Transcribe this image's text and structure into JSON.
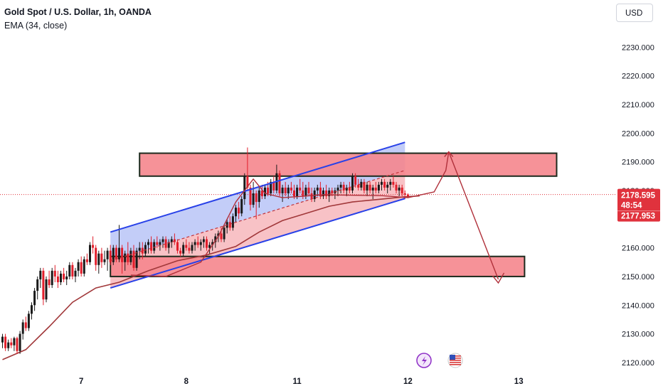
{
  "header": {
    "title": "Gold Spot / U.S. Dollar, 1h, OANDA",
    "indicator": "EMA (34, close)",
    "currency": "USD"
  },
  "colors": {
    "up": "#1a1a1a",
    "down": "#e11d2a",
    "ema": "#a1383a",
    "zone_fill": "#f5868d",
    "channel_blue": "#2841e8",
    "price_tag": "#e0323d"
  },
  "chart_data": {
    "type": "candlestick",
    "title": "Gold Spot / U.S. Dollar, 1h, OANDA",
    "ylim": [
      2117.5,
      2239
    ],
    "y_ticks": [
      2120,
      2130,
      2140,
      2150,
      2160,
      2170,
      2180,
      2190,
      2200,
      2210,
      2220,
      2230
    ],
    "y_tick_labels": [
      "2120.000",
      "2130.000",
      "2140.000",
      "2150.000",
      "2160.000",
      "",
      "2180.000",
      "2190.000",
      "2200.000",
      "2210.000",
      "2220.000",
      "2230.000"
    ],
    "x_day_labels": [
      {
        "label": "7",
        "bar": 27
      },
      {
        "label": "8",
        "bar": 63
      },
      {
        "label": "11",
        "bar": 101
      },
      {
        "label": "12",
        "bar": 139
      },
      {
        "label": "13",
        "bar": 177
      }
    ],
    "price_tag": {
      "price": 2178.595,
      "countdown": "48:54",
      "low_value": 2177.953
    },
    "indicator_ema": {
      "name": "EMA (34, close)",
      "points": [
        [
          0,
          2121.0
        ],
        [
          8,
          2124.5
        ],
        [
          16,
          2132.5
        ],
        [
          24,
          2141.0
        ],
        [
          32,
          2146.0
        ],
        [
          40,
          2148.0
        ],
        [
          50,
          2152.0
        ],
        [
          60,
          2155.5
        ],
        [
          70,
          2157.5
        ],
        [
          80,
          2160.5
        ],
        [
          88,
          2165.5
        ],
        [
          96,
          2169.5
        ],
        [
          104,
          2172.0
        ],
        [
          112,
          2174.5
        ],
        [
          120,
          2176.0
        ],
        [
          130,
          2177.0
        ],
        [
          138,
          2177.8
        ],
        [
          143,
          2178.1
        ]
      ]
    },
    "candles": [
      [
        2127.0,
        2130.0,
        2125.0,
        2129.0
      ],
      [
        2129.0,
        2130.0,
        2124.0,
        2125.0
      ],
      [
        2125.0,
        2128.0,
        2124.0,
        2127.0
      ],
      [
        2127.0,
        2128.5,
        2125.0,
        2126.0
      ],
      [
        2126.0,
        2129.0,
        2124.0,
        2128.5
      ],
      [
        2128.5,
        2129.0,
        2123.0,
        2124.0
      ],
      [
        2124.0,
        2131.0,
        2123.0,
        2130.0
      ],
      [
        2130.0,
        2135.0,
        2128.0,
        2134.0
      ],
      [
        2134.0,
        2136.0,
        2131.0,
        2132.0
      ],
      [
        2132.0,
        2138.0,
        2131.0,
        2137.0
      ],
      [
        2137.0,
        2141.0,
        2135.0,
        2140.0
      ],
      [
        2140.0,
        2146.0,
        2138.0,
        2145.0
      ],
      [
        2145.0,
        2150.0,
        2142.0,
        2149.0
      ],
      [
        2149.0,
        2153.0,
        2146.0,
        2152.0
      ],
      [
        2152.0,
        2153.0,
        2140.0,
        2142.0
      ],
      [
        2142.0,
        2150.0,
        2141.0,
        2149.0
      ],
      [
        2149.0,
        2152.0,
        2146.0,
        2147.0
      ],
      [
        2147.0,
        2153.0,
        2146.0,
        2152.0
      ],
      [
        2152.0,
        2154.0,
        2148.0,
        2150.0
      ],
      [
        2150.0,
        2152.0,
        2146.0,
        2148.0
      ],
      [
        2148.0,
        2152.0,
        2147.0,
        2151.0
      ],
      [
        2151.0,
        2153.0,
        2148.0,
        2149.0
      ],
      [
        2149.0,
        2152.0,
        2147.0,
        2150.0
      ],
      [
        2150.0,
        2155.0,
        2149.0,
        2154.0
      ],
      [
        2154.0,
        2155.0,
        2149.0,
        2150.0
      ],
      [
        2150.0,
        2153.0,
        2148.0,
        2152.0
      ],
      [
        2152.0,
        2156.0,
        2150.0,
        2155.0
      ],
      [
        2155.0,
        2157.0,
        2150.0,
        2151.0
      ],
      [
        2151.0,
        2157.0,
        2150.0,
        2156.0
      ],
      [
        2156.0,
        2158.0,
        2154.0,
        2155.0
      ],
      [
        2155.0,
        2162.0,
        2154.0,
        2161.0
      ],
      [
        2161.0,
        2164.0,
        2158.0,
        2160.0
      ],
      [
        2160.0,
        2161.0,
        2152.0,
        2154.0
      ],
      [
        2154.0,
        2159.0,
        2151.0,
        2158.0
      ],
      [
        2158.0,
        2160.0,
        2153.0,
        2155.0
      ],
      [
        2155.0,
        2159.0,
        2154.0,
        2156.0
      ],
      [
        2156.0,
        2160.0,
        2152.0,
        2159.0
      ],
      [
        2159.0,
        2161.0,
        2154.0,
        2155.0
      ],
      [
        2155.0,
        2161.0,
        2154.0,
        2160.0
      ],
      [
        2160.0,
        2161.0,
        2155.0,
        2156.0
      ],
      [
        2156.0,
        2168.0,
        2155.0,
        2160.0
      ],
      [
        2160.0,
        2161.0,
        2151.0,
        2155.0
      ],
      [
        2155.0,
        2159.0,
        2152.0,
        2158.0
      ],
      [
        2158.0,
        2162.0,
        2154.0,
        2155.0
      ],
      [
        2155.0,
        2160.0,
        2154.0,
        2159.0
      ],
      [
        2159.0,
        2161.0,
        2152.0,
        2153.0
      ],
      [
        2153.0,
        2160.0,
        2152.0,
        2159.0
      ],
      [
        2159.0,
        2162.0,
        2156.0,
        2160.0
      ],
      [
        2160.0,
        2162.0,
        2156.0,
        2158.0
      ],
      [
        2158.0,
        2162.0,
        2157.0,
        2161.0
      ],
      [
        2161.0,
        2163.0,
        2158.0,
        2162.0
      ],
      [
        2162.0,
        2164.0,
        2158.0,
        2159.0
      ],
      [
        2159.0,
        2163.0,
        2158.0,
        2162.0
      ],
      [
        2162.0,
        2164.0,
        2160.0,
        2161.0
      ],
      [
        2161.0,
        2163.0,
        2159.0,
        2162.0
      ],
      [
        2162.0,
        2164.0,
        2160.0,
        2163.0
      ],
      [
        2163.0,
        2164.0,
        2159.0,
        2160.0
      ],
      [
        2160.0,
        2163.0,
        2158.0,
        2162.0
      ],
      [
        2162.0,
        2164.0,
        2160.0,
        2163.0
      ],
      [
        2163.0,
        2165.0,
        2161.0,
        2162.0
      ],
      [
        2162.0,
        2163.0,
        2158.0,
        2159.0
      ],
      [
        2159.0,
        2160.0,
        2157.0,
        2158.0
      ],
      [
        2158.0,
        2162.0,
        2157.0,
        2161.0
      ],
      [
        2161.0,
        2163.0,
        2159.0,
        2160.0
      ],
      [
        2160.0,
        2162.0,
        2158.0,
        2159.0
      ],
      [
        2159.0,
        2162.0,
        2158.0,
        2161.0
      ],
      [
        2161.0,
        2163.0,
        2159.0,
        2162.0
      ],
      [
        2162.0,
        2164.0,
        2160.0,
        2161.0
      ],
      [
        2161.0,
        2163.0,
        2159.0,
        2162.0
      ],
      [
        2162.0,
        2164.0,
        2160.0,
        2163.0
      ],
      [
        2163.0,
        2164.0,
        2159.0,
        2160.0
      ],
      [
        2160.0,
        2162.0,
        2158.0,
        2161.0
      ],
      [
        2161.0,
        2163.0,
        2159.0,
        2162.0
      ],
      [
        2162.0,
        2165.0,
        2160.0,
        2164.0
      ],
      [
        2164.0,
        2166.0,
        2162.0,
        2165.0
      ],
      [
        2165.0,
        2167.0,
        2162.0,
        2163.0
      ],
      [
        2163.0,
        2168.0,
        2162.0,
        2167.0
      ],
      [
        2167.0,
        2170.0,
        2165.0,
        2169.0
      ],
      [
        2169.0,
        2171.0,
        2166.0,
        2167.0
      ],
      [
        2167.0,
        2172.0,
        2166.0,
        2171.0
      ],
      [
        2171.0,
        2175.0,
        2169.0,
        2174.0
      ],
      [
        2174.0,
        2176.0,
        2170.0,
        2172.0
      ],
      [
        2172.0,
        2178.0,
        2171.0,
        2177.0
      ],
      [
        2177.0,
        2186.0,
        2175.0,
        2185.0
      ],
      [
        2185.0,
        2195.0,
        2180.0,
        2181.0
      ],
      [
        2181.0,
        2182.0,
        2173.0,
        2175.0
      ],
      [
        2175.0,
        2183.0,
        2174.0,
        2179.0
      ],
      [
        2179.0,
        2180.0,
        2170.0,
        2176.0
      ],
      [
        2176.0,
        2181.0,
        2174.0,
        2180.0
      ],
      [
        2180.0,
        2182.0,
        2177.0,
        2178.0
      ],
      [
        2178.0,
        2182.0,
        2177.0,
        2181.0
      ],
      [
        2181.0,
        2183.0,
        2178.0,
        2179.0
      ],
      [
        2179.0,
        2184.0,
        2178.0,
        2183.0
      ],
      [
        2183.0,
        2185.0,
        2179.0,
        2180.0
      ],
      [
        2180.0,
        2189.0,
        2179.0,
        2186.0
      ],
      [
        2186.0,
        2187.0,
        2178.0,
        2179.0
      ],
      [
        2179.0,
        2182.0,
        2176.0,
        2181.0
      ],
      [
        2181.0,
        2183.0,
        2178.0,
        2179.0
      ],
      [
        2179.0,
        2182.0,
        2177.0,
        2181.0
      ],
      [
        2181.0,
        2183.0,
        2179.0,
        2180.0
      ],
      [
        2180.0,
        2182.0,
        2177.0,
        2178.0
      ],
      [
        2178.0,
        2182.0,
        2177.0,
        2181.0
      ],
      [
        2181.0,
        2184.0,
        2179.0,
        2180.0
      ],
      [
        2180.0,
        2183.0,
        2177.0,
        2178.0
      ],
      [
        2178.0,
        2182.0,
        2177.0,
        2181.0
      ],
      [
        2181.0,
        2183.0,
        2178.0,
        2179.0
      ],
      [
        2179.0,
        2181.0,
        2176.0,
        2177.0
      ],
      [
        2177.0,
        2181.0,
        2176.0,
        2180.0
      ],
      [
        2180.0,
        2182.0,
        2178.0,
        2181.0
      ],
      [
        2181.0,
        2183.0,
        2177.0,
        2178.0
      ],
      [
        2178.0,
        2181.0,
        2177.0,
        2180.0
      ],
      [
        2180.0,
        2182.0,
        2177.0,
        2178.0
      ],
      [
        2178.0,
        2181.0,
        2176.0,
        2180.0
      ],
      [
        2180.0,
        2181.0,
        2178.0,
        2179.0
      ],
      [
        2179.0,
        2181.0,
        2177.0,
        2180.0
      ],
      [
        2180.0,
        2182.0,
        2178.0,
        2181.0
      ],
      [
        2181.0,
        2183.0,
        2179.0,
        2182.0
      ],
      [
        2182.0,
        2183.0,
        2179.0,
        2180.0
      ],
      [
        2180.0,
        2182.0,
        2178.0,
        2181.0
      ],
      [
        2181.0,
        2183.0,
        2179.0,
        2180.0
      ],
      [
        2180.0,
        2186.0,
        2179.0,
        2185.0
      ],
      [
        2185.0,
        2186.0,
        2181.0,
        2182.0
      ],
      [
        2182.0,
        2184.0,
        2180.0,
        2181.0
      ],
      [
        2181.0,
        2184.0,
        2180.0,
        2183.0
      ],
      [
        2183.0,
        2184.0,
        2179.0,
        2180.0
      ],
      [
        2180.0,
        2183.0,
        2178.0,
        2182.0
      ],
      [
        2182.0,
        2183.0,
        2179.0,
        2180.0
      ],
      [
        2180.0,
        2182.0,
        2177.0,
        2181.0
      ],
      [
        2181.0,
        2183.0,
        2179.0,
        2180.0
      ],
      [
        2180.0,
        2183.0,
        2179.0,
        2182.0
      ],
      [
        2182.0,
        2184.0,
        2180.0,
        2183.0
      ],
      [
        2183.0,
        2184.0,
        2180.0,
        2181.0
      ],
      [
        2181.0,
        2183.0,
        2179.0,
        2182.0
      ],
      [
        2182.0,
        2184.0,
        2180.0,
        2183.0
      ],
      [
        2183.0,
        2185.0,
        2181.0,
        2182.0
      ],
      [
        2182.0,
        2183.0,
        2179.0,
        2180.0
      ],
      [
        2180.0,
        2182.0,
        2178.0,
        2181.0
      ],
      [
        2181.0,
        2182.0,
        2178.0,
        2179.0
      ],
      [
        2179.0,
        2180.0,
        2177.0,
        2178.6
      ],
      [
        2178.6,
        2179.0,
        2177.5,
        2178.0
      ]
    ],
    "drawings": {
      "zones": [
        {
          "name": "resistance-zone",
          "bar_from": 47,
          "bar_to": 190,
          "price_top": 2193.0,
          "price_bottom": 2185.0
        },
        {
          "name": "support-zone",
          "bar_from": 37,
          "bar_to": 179,
          "price_top": 2157.0,
          "price_bottom": 2150.0
        }
      ],
      "channel": {
        "upper": [
          [
            37,
            2165.5
          ],
          [
            138,
            2196.8
          ]
        ],
        "lower": [
          [
            37,
            2146.0
          ],
          [
            138,
            2177.2
          ]
        ],
        "mid": [
          [
            37,
            2155.5
          ],
          [
            138,
            2187.0
          ]
        ]
      },
      "projection": {
        "curve": [
          [
            44,
            2150.5
          ],
          [
            56,
            2150.0
          ],
          [
            68,
            2155.0
          ],
          [
            74,
            2164.0
          ],
          [
            80,
            2176.0
          ],
          [
            86,
            2184.0
          ],
          [
            90,
            2179.0
          ],
          [
            96,
            2177.5
          ],
          [
            110,
            2178.5
          ],
          [
            130,
            2178.2
          ],
          [
            139,
            2177.5
          ],
          [
            148,
            2179.5
          ],
          [
            152,
            2187.0
          ],
          [
            153,
            2193.5
          ]
        ],
        "drop": [
          [
            153,
            2193.5
          ],
          [
            170,
            2149.0
          ]
        ]
      }
    }
  }
}
